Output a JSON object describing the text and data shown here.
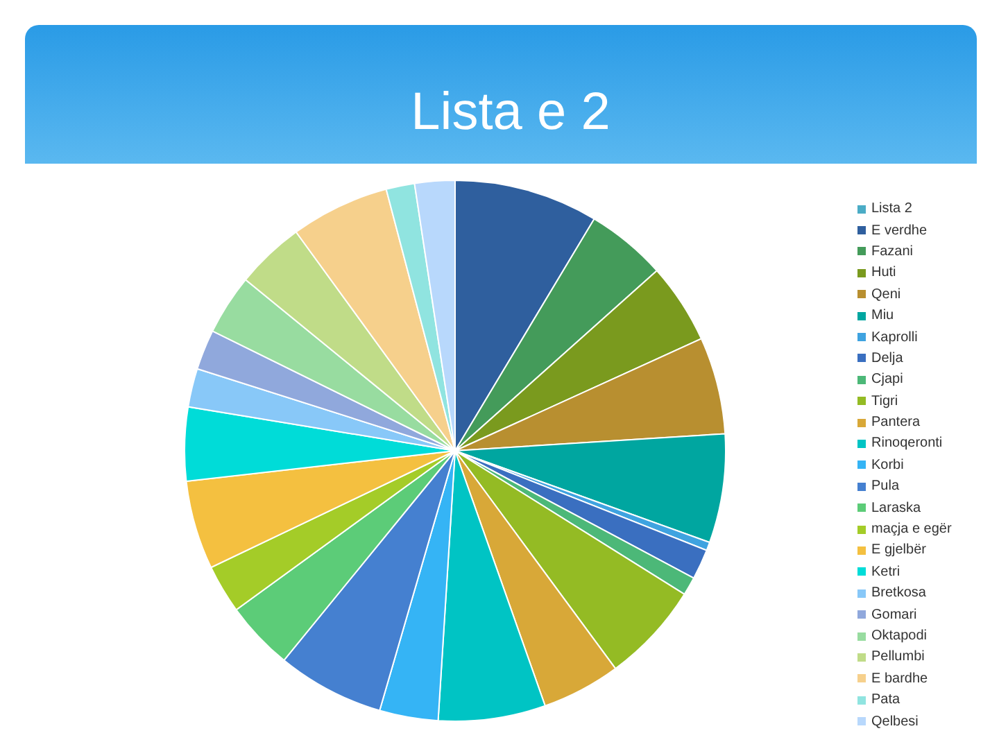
{
  "chart_data": {
    "type": "pie",
    "title": "Lista e 2",
    "categories": [
      "Lista 2",
      "E verdhe",
      "Fazani",
      "Huti",
      "Qeni",
      "Miu",
      "Kaprolli",
      "Delja",
      "Cjapi",
      "Tigri",
      "Pantera",
      "Rinoqeronti",
      "Korbi",
      "Pula",
      "Laraska",
      "maçja e egër",
      "E gjelbër",
      "Ketri",
      "Bretkosa",
      "Gomari",
      "Oktapodi",
      "Pellumbi",
      "E bardhe",
      "Pata",
      "Qelbesi"
    ],
    "values": [
      0,
      8.6,
      4.8,
      4.8,
      5.8,
      6.5,
      0.5,
      1.8,
      1.1,
      6.0,
      4.7,
      6.4,
      3.5,
      6.4,
      4.1,
      2.9,
      5.3,
      4.4,
      2.3,
      2.4,
      3.6,
      4.1,
      5.9,
      1.7,
      2.4
    ],
    "colors": [
      "#4bacc6",
      "#2f5f9e",
      "#449b5a",
      "#7a9a1e",
      "#b88f30",
      "#00a6a0",
      "#3fa3e0",
      "#3a6fc0",
      "#4cb878",
      "#94bb24",
      "#d8a838",
      "#00c4c4",
      "#35b4f5",
      "#4580d0",
      "#5ccc78",
      "#a4cc28",
      "#f4c040",
      "#00dcd8",
      "#88c8f8",
      "#90a8dc",
      "#98dca0",
      "#c0dc88",
      "#f6d08c",
      "#90e4e0",
      "#b8d8fc"
    ],
    "legend": "right"
  }
}
